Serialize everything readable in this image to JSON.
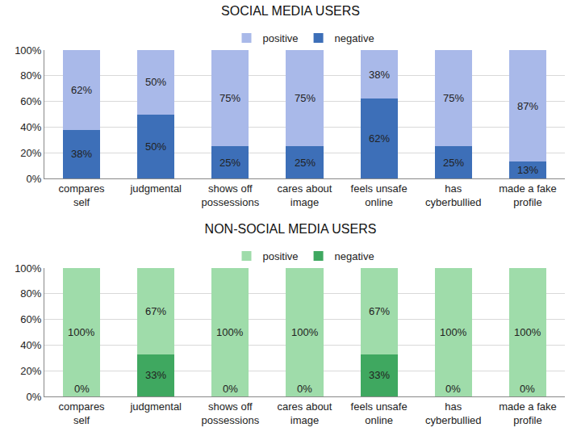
{
  "chart_data": [
    {
      "type": "bar",
      "title": "SOCIAL MEDIA USERS",
      "stacked": true,
      "legend": "top",
      "data_labels": true,
      "categories": [
        "compares self",
        "judgmental",
        "shows off possessions",
        "cares about image",
        "feels unsafe online",
        "has cyberbullied",
        "made a fake profile"
      ],
      "series": [
        {
          "name": "negative",
          "color": "#3d6fb8",
          "values": [
            38,
            50,
            25,
            25,
            62,
            25,
            13
          ],
          "value_labels": [
            "38%",
            "50%",
            "25%",
            "25%",
            "62%",
            "25%",
            "13%"
          ]
        },
        {
          "name": "positive",
          "color": "#a9b9e9",
          "values": [
            62,
            50,
            75,
            75,
            38,
            75,
            87
          ],
          "value_labels": [
            "62%",
            "50%",
            "75%",
            "75%",
            "38%",
            "75%",
            "87%"
          ]
        }
      ],
      "ylim": [
        0,
        100
      ],
      "yticks": [
        {
          "value": 0,
          "label": "0%"
        },
        {
          "value": 20,
          "label": "20%"
        },
        {
          "value": 40,
          "label": "40%"
        },
        {
          "value": 60,
          "label": "60%"
        },
        {
          "value": 80,
          "label": "80%"
        },
        {
          "value": 100,
          "label": "100%"
        }
      ]
    },
    {
      "type": "bar",
      "title": "NON-SOCIAL MEDIA USERS",
      "stacked": true,
      "legend": "top",
      "data_labels": true,
      "categories": [
        "compares self",
        "judgmental",
        "shows off possessions",
        "cares about image",
        "feels unsafe online",
        "has cyberbullied",
        "made a fake profile"
      ],
      "series": [
        {
          "name": "negative",
          "color": "#3fa860",
          "values": [
            0,
            33,
            0,
            0,
            33,
            0,
            0
          ],
          "value_labels": [
            "0%",
            "33%",
            "0%",
            "0%",
            "33%",
            "0%",
            "0%"
          ]
        },
        {
          "name": "positive",
          "color": "#9fdcaa",
          "values": [
            100,
            67,
            100,
            100,
            67,
            100,
            100
          ],
          "value_labels": [
            "100%",
            "67%",
            "100%",
            "100%",
            "67%",
            "100%",
            "100%"
          ]
        }
      ],
      "ylim": [
        0,
        100
      ],
      "yticks": [
        {
          "value": 0,
          "label": "0%"
        },
        {
          "value": 20,
          "label": "20%"
        },
        {
          "value": 40,
          "label": "40%"
        },
        {
          "value": 60,
          "label": "60%"
        },
        {
          "value": 80,
          "label": "80%"
        },
        {
          "value": 100,
          "label": "100%"
        }
      ]
    }
  ]
}
